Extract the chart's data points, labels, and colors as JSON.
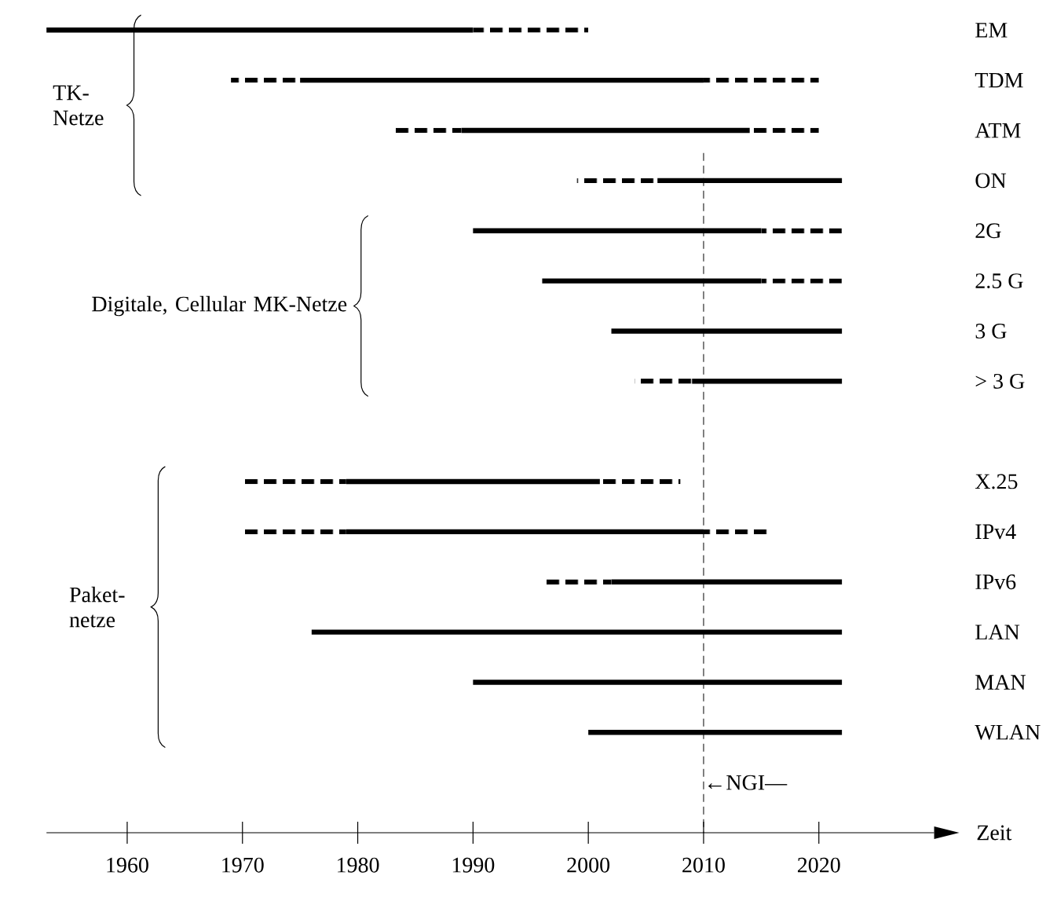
{
  "chart_data": {
    "type": "bar",
    "orientation": "horizontal",
    "xlabel": "Zeit",
    "categories": [
      "EM",
      "TDM",
      "ATM",
      "ON",
      "2G",
      "2.5 G",
      "3 G",
      "> 3 G",
      null,
      "X.25",
      "IPv4",
      "IPv6",
      "LAN",
      "MAN",
      "WLAN"
    ],
    "series": [
      {
        "color": "#000000",
        "line_style": "dashed",
        "base": [
          null,
          1969,
          1983,
          1999,
          null,
          null,
          null,
          2004,
          null,
          1970,
          1970,
          1996,
          null,
          null,
          null
        ],
        "values": [
          null,
          6,
          6,
          7,
          null,
          null,
          null,
          5,
          null,
          9,
          9,
          6,
          null,
          null,
          null
        ]
      },
      {
        "color": "#000000",
        "line_style": "solid",
        "base": [
          1953,
          1975,
          1989,
          2006,
          1990,
          1996,
          2002,
          2009,
          null,
          1979,
          1979,
          2002,
          1976,
          1990,
          2000
        ],
        "values": [
          37,
          35,
          25,
          16,
          25,
          19,
          20,
          13,
          null,
          22,
          31,
          20,
          46,
          32,
          22
        ]
      },
      {
        "color": "#000000",
        "line_style": "dashed",
        "base": [
          1990,
          2010,
          2014,
          null,
          2015,
          2015,
          null,
          null,
          null,
          2001,
          2010,
          null,
          null,
          null,
          null
        ],
        "values": [
          10,
          10,
          6,
          null,
          7,
          7,
          null,
          null,
          null,
          7,
          6,
          null,
          null,
          null,
          null
        ]
      }
    ],
    "xlim": [
      1953,
      2030
    ],
    "xticks": [
      1960,
      1970,
      1980,
      1990,
      2000,
      2010,
      2020
    ],
    "ref_lines": [
      {
        "axis": "x",
        "value": 2010,
        "label": null,
        "line_style": "dashed",
        "color": "#000000"
      }
    ],
    "annotations": [
      "TK- Netze",
      "Digitale, Cellular MK-Netze",
      "Paket- netze",
      {
        "text": "←NGI—",
        "x": 2010
      }
    ]
  }
}
